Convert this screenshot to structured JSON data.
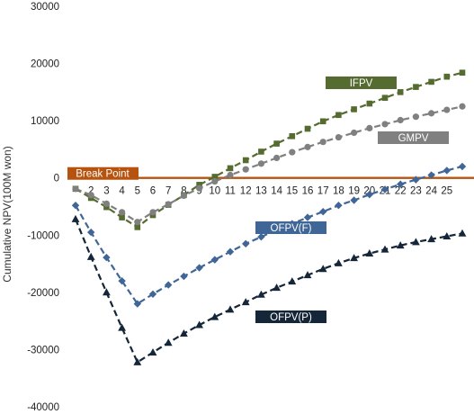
{
  "chart_data": {
    "type": "line",
    "title": "",
    "xlabel": "",
    "ylabel": "Cumulative NPV(100M won)",
    "ylim": [
      -40000,
      30000
    ],
    "yticks": [
      -40000,
      -30000,
      -20000,
      -10000,
      0,
      10000,
      20000,
      30000
    ],
    "x": [
      1,
      2,
      3,
      4,
      5,
      6,
      7,
      8,
      9,
      10,
      11,
      12,
      13,
      14,
      15,
      16,
      17,
      18,
      19,
      20,
      21,
      22,
      23,
      24,
      25,
      26
    ],
    "xtick_labels": [
      "2",
      "3",
      "4",
      "5",
      "6",
      "7",
      "8",
      "9",
      "10",
      "11",
      "12",
      "13",
      "14",
      "15",
      "16",
      "17",
      "18",
      "19",
      "20",
      "21",
      "22",
      "23",
      "24",
      "25"
    ],
    "break_point": {
      "label": "Break Point",
      "value": 0,
      "color": "#b5530f"
    },
    "grid": false,
    "series": [
      {
        "name": "IFPV",
        "color": "#556b2f",
        "marker": "square",
        "values": [
          -1900,
          -3500,
          -5100,
          -6900,
          -8600,
          -6500,
          -4700,
          -3000,
          -1200,
          200,
          1700,
          3100,
          4600,
          6000,
          7300,
          8600,
          9900,
          11000,
          12000,
          13000,
          14000,
          15000,
          15900,
          16800,
          17700,
          18400
        ]
      },
      {
        "name": "GMPV",
        "color": "#808080",
        "marker": "circle",
        "values": [
          -1900,
          -3000,
          -4500,
          -6000,
          -7700,
          -6000,
          -4600,
          -3100,
          -1800,
          -600,
          500,
          1500,
          2500,
          3500,
          4500,
          5400,
          6300,
          7100,
          7900,
          8700,
          9400,
          10100,
          10700,
          11300,
          11900,
          12500
        ]
      },
      {
        "name": "OFPV(F)",
        "color": "#3f6696",
        "marker": "diamond",
        "values": [
          -4800,
          -9500,
          -13900,
          -18000,
          -22000,
          -20300,
          -18700,
          -17200,
          -15700,
          -14300,
          -12900,
          -11500,
          -10300,
          -9100,
          -8000,
          -6900,
          -5900,
          -4800,
          -3900,
          -2900,
          -2000,
          -1100,
          -300,
          500,
          1300,
          2000
        ]
      },
      {
        "name": "OFPV(P)",
        "color": "#152638",
        "marker": "triangle",
        "values": [
          -7200,
          -13800,
          -20000,
          -26200,
          -32200,
          -30500,
          -28800,
          -27200,
          -25700,
          -24300,
          -23000,
          -21700,
          -20400,
          -19200,
          -18100,
          -17000,
          -15900,
          -14900,
          -14000,
          -13200,
          -12500,
          -11800,
          -11200,
          -10700,
          -10200,
          -9700
        ]
      }
    ],
    "series_labels": [
      "IFPV",
      "GMPV",
      "OFPV(F)",
      "OFPV(P)"
    ]
  }
}
